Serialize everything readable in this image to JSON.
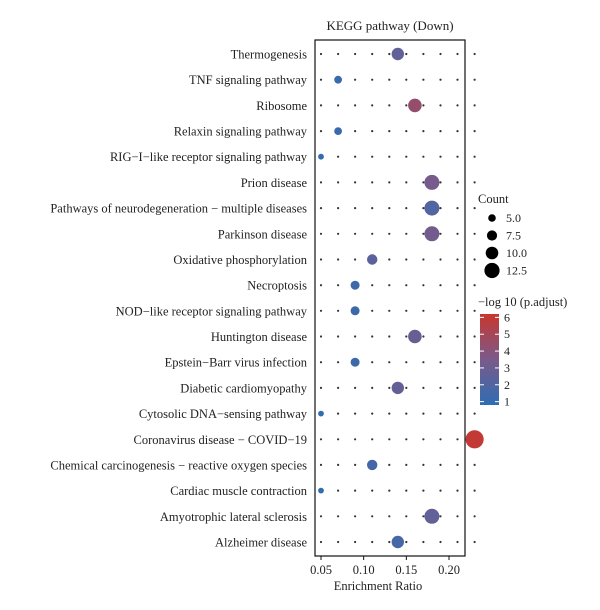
{
  "chart_data": {
    "type": "scatter",
    "title": "KEGG pathway (Down)",
    "xlabel": "Enrichment Ratio",
    "ylabel": "",
    "xlim": [
      0.045,
      0.235
    ],
    "x_ticks": [
      0.05,
      0.1,
      0.15,
      0.2
    ],
    "x_tick_labels": [
      "0.05",
      "0.10",
      "0.15",
      "0.20"
    ],
    "grid": "dotted",
    "categories": [
      "Thermogenesis",
      "TNF signaling pathway",
      "Ribosome",
      "Relaxin signaling pathway",
      "RIG−I−like receptor signaling pathway",
      "Prion disease",
      "Pathways of neurodegeneration − multiple diseases",
      "Parkinson disease",
      "Oxidative phosphorylation",
      "Necroptosis",
      "NOD−like receptor signaling pathway",
      "Huntington disease",
      "Epstein−Barr virus infection",
      "Diabetic cardiomyopathy",
      "Cytosolic DNA−sensing pathway",
      "Coronavirus disease − COVID−19",
      "Chemical carcinogenesis − reactive oxygen species",
      "Cardiac muscle contraction",
      "Amyotrophic lateral sclerosis",
      "Alzheimer disease"
    ],
    "points": [
      {
        "category": "Thermogenesis",
        "x": 0.14,
        "count": 7,
        "p": 2.6
      },
      {
        "category": "TNF signaling pathway",
        "x": 0.07,
        "count": 3.5,
        "p": 1.2
      },
      {
        "category": "Ribosome",
        "x": 0.16,
        "count": 8,
        "p": 4.4
      },
      {
        "category": "Relaxin signaling pathway",
        "x": 0.07,
        "count": 3.5,
        "p": 1.2
      },
      {
        "category": "RIG−I−like receptor signaling pathway",
        "x": 0.05,
        "count": 2,
        "p": 1.0
      },
      {
        "category": "Prion disease",
        "x": 0.18,
        "count": 9,
        "p": 3.4
      },
      {
        "category": "Pathways of neurodegeneration − multiple diseases",
        "x": 0.18,
        "count": 9,
        "p": 2.0
      },
      {
        "category": "Parkinson disease",
        "x": 0.18,
        "count": 9,
        "p": 3.3
      },
      {
        "category": "Oxidative phosphorylation",
        "x": 0.11,
        "count": 5.5,
        "p": 2.4
      },
      {
        "category": "Necroptosis",
        "x": 0.09,
        "count": 4.5,
        "p": 1.4
      },
      {
        "category": "NOD−like receptor signaling pathway",
        "x": 0.09,
        "count": 4.5,
        "p": 1.3
      },
      {
        "category": "Huntington disease",
        "x": 0.16,
        "count": 8,
        "p": 2.9
      },
      {
        "category": "Epstein−Barr virus infection",
        "x": 0.09,
        "count": 4.5,
        "p": 1.3
      },
      {
        "category": "Diabetic cardiomyopathy",
        "x": 0.14,
        "count": 7,
        "p": 2.7
      },
      {
        "category": "Cytosolic DNA−sensing pathway",
        "x": 0.05,
        "count": 2,
        "p": 1.0
      },
      {
        "category": "Coronavirus disease − COVID−19",
        "x": 0.23,
        "count": 11.5,
        "p": 6.0
      },
      {
        "category": "Chemical carcinogenesis − reactive oxygen species",
        "x": 0.11,
        "count": 5.5,
        "p": 1.6
      },
      {
        "category": "Cardiac muscle contraction",
        "x": 0.05,
        "count": 2,
        "p": 1.0
      },
      {
        "category": "Amyotrophic lateral sclerosis",
        "x": 0.18,
        "count": 9,
        "p": 2.6
      },
      {
        "category": "Alzheimer disease",
        "x": 0.14,
        "count": 7,
        "p": 1.7
      }
    ],
    "size_legend": {
      "title": "Count",
      "values": [
        5.0,
        7.5,
        10.0,
        12.5
      ],
      "labels": [
        "5.0",
        "7.5",
        "10.0",
        "12.5"
      ]
    },
    "color_legend": {
      "title": "−log 10 (p.adjust)",
      "min": 0.8,
      "max": 6.2,
      "ticks": [
        1,
        2,
        3,
        4,
        5,
        6
      ],
      "tick_labels": [
        "1",
        "2",
        "3",
        "4",
        "5",
        "6"
      ],
      "low_color": "#2f6db3",
      "mid_color": "#7a5a8a",
      "high_color": "#c8362e"
    }
  }
}
